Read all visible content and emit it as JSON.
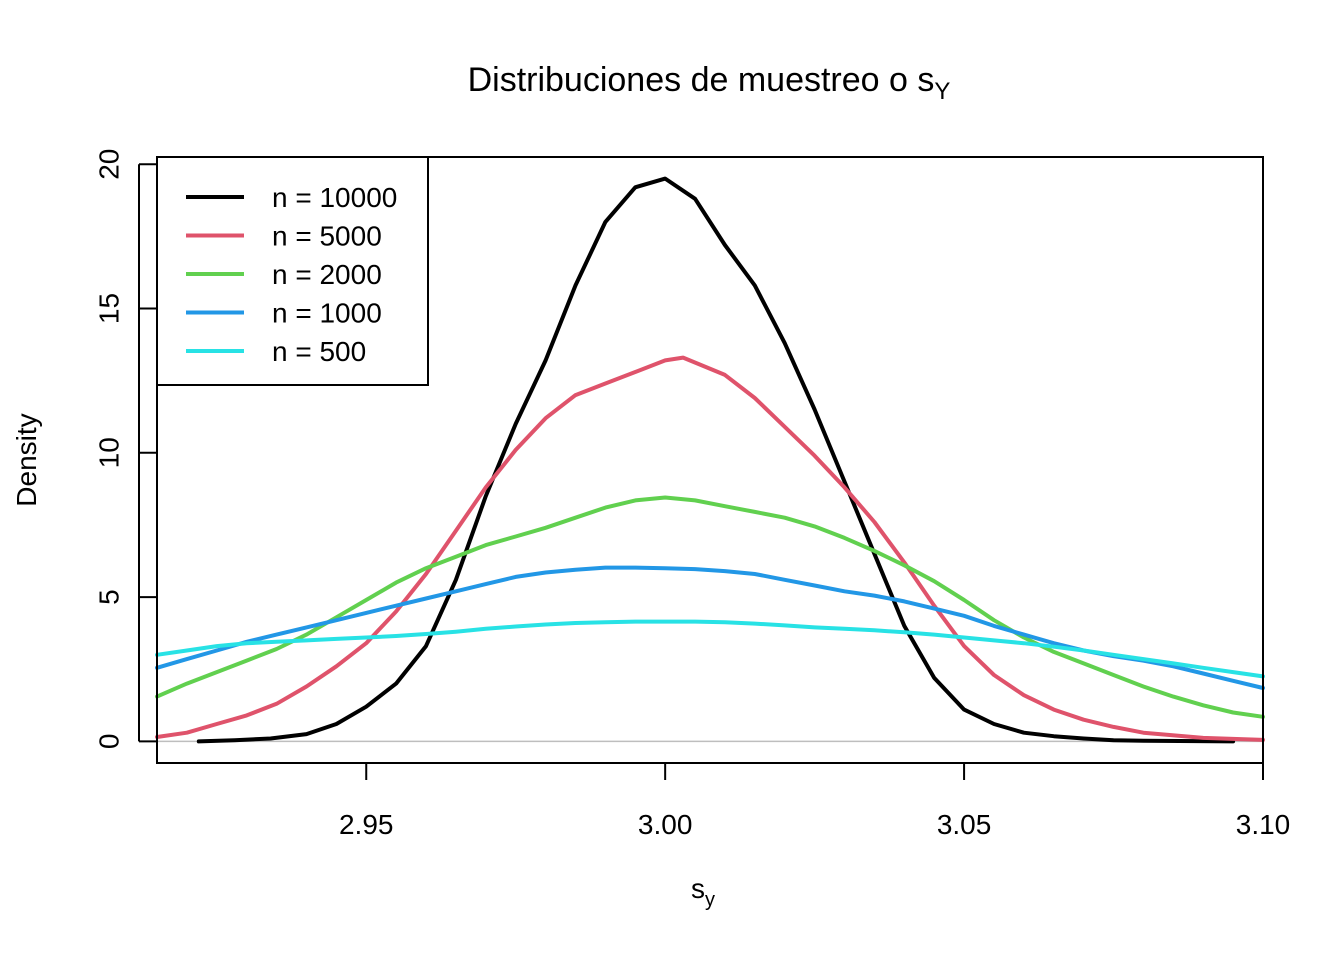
{
  "chart_data": {
    "type": "line",
    "title": "Distribuciones de muestreo o s",
    "title_subscript": "Y",
    "xlabel": "s",
    "xlabel_subscript": "y",
    "ylabel": "Density",
    "xlim": [
      2.915,
      3.1
    ],
    "ylim": [
      -0.75,
      20.25
    ],
    "x_ticks": [
      {
        "value": 2.95,
        "label": "2.95"
      },
      {
        "value": 3.0,
        "label": "3.00"
      },
      {
        "value": 3.05,
        "label": "3.05"
      },
      {
        "value": 3.1,
        "label": "3.10"
      }
    ],
    "y_ticks": [
      {
        "value": 0,
        "label": "0"
      },
      {
        "value": 5,
        "label": "5"
      },
      {
        "value": 10,
        "label": "10"
      },
      {
        "value": 15,
        "label": "15"
      },
      {
        "value": 20,
        "label": "20"
      }
    ],
    "grid": false,
    "zero_line": true,
    "zero_line_color": "#bebebe",
    "legend": {
      "position": "top-left"
    },
    "series": [
      {
        "name": "n = 10000",
        "color": "#000000",
        "points": [
          [
            2.922,
            0.0
          ],
          [
            2.928,
            0.04
          ],
          [
            2.934,
            0.1
          ],
          [
            2.94,
            0.25
          ],
          [
            2.945,
            0.6
          ],
          [
            2.95,
            1.2
          ],
          [
            2.955,
            2.0
          ],
          [
            2.96,
            3.3
          ],
          [
            2.965,
            5.6
          ],
          [
            2.97,
            8.5
          ],
          [
            2.975,
            11.0
          ],
          [
            2.98,
            13.2
          ],
          [
            2.985,
            15.8
          ],
          [
            2.99,
            18.0
          ],
          [
            2.995,
            19.2
          ],
          [
            3.0,
            19.5
          ],
          [
            3.005,
            18.8
          ],
          [
            3.01,
            17.2
          ],
          [
            3.015,
            15.8
          ],
          [
            3.02,
            13.8
          ],
          [
            3.025,
            11.5
          ],
          [
            3.03,
            9.0
          ],
          [
            3.035,
            6.5
          ],
          [
            3.04,
            4.0
          ],
          [
            3.045,
            2.2
          ],
          [
            3.05,
            1.1
          ],
          [
            3.055,
            0.6
          ],
          [
            3.06,
            0.3
          ],
          [
            3.065,
            0.18
          ],
          [
            3.07,
            0.1
          ],
          [
            3.075,
            0.04
          ],
          [
            3.08,
            0.02
          ],
          [
            3.095,
            0.0
          ]
        ]
      },
      {
        "name": "n = 5000",
        "color": "#df536b",
        "points": [
          [
            2.915,
            0.15
          ],
          [
            2.92,
            0.3
          ],
          [
            2.925,
            0.6
          ],
          [
            2.93,
            0.9
          ],
          [
            2.935,
            1.3
          ],
          [
            2.94,
            1.9
          ],
          [
            2.945,
            2.6
          ],
          [
            2.95,
            3.4
          ],
          [
            2.955,
            4.5
          ],
          [
            2.96,
            5.8
          ],
          [
            2.965,
            7.3
          ],
          [
            2.97,
            8.8
          ],
          [
            2.975,
            10.1
          ],
          [
            2.98,
            11.2
          ],
          [
            2.985,
            12.0
          ],
          [
            2.99,
            12.4
          ],
          [
            2.995,
            12.8
          ],
          [
            3.0,
            13.2
          ],
          [
            3.003,
            13.3
          ],
          [
            3.01,
            12.7
          ],
          [
            3.015,
            11.9
          ],
          [
            3.02,
            10.9
          ],
          [
            3.025,
            9.9
          ],
          [
            3.03,
            8.8
          ],
          [
            3.035,
            7.6
          ],
          [
            3.04,
            6.2
          ],
          [
            3.045,
            4.7
          ],
          [
            3.05,
            3.3
          ],
          [
            3.055,
            2.3
          ],
          [
            3.06,
            1.6
          ],
          [
            3.065,
            1.1
          ],
          [
            3.07,
            0.75
          ],
          [
            3.075,
            0.5
          ],
          [
            3.08,
            0.3
          ],
          [
            3.09,
            0.12
          ],
          [
            3.1,
            0.05
          ]
        ]
      },
      {
        "name": "n = 2000",
        "color": "#61d04f",
        "points": [
          [
            2.915,
            1.55
          ],
          [
            2.92,
            2.0
          ],
          [
            2.925,
            2.4
          ],
          [
            2.93,
            2.8
          ],
          [
            2.935,
            3.2
          ],
          [
            2.94,
            3.7
          ],
          [
            2.945,
            4.3
          ],
          [
            2.95,
            4.9
          ],
          [
            2.955,
            5.5
          ],
          [
            2.96,
            6.0
          ],
          [
            2.965,
            6.4
          ],
          [
            2.97,
            6.8
          ],
          [
            2.975,
            7.1
          ],
          [
            2.98,
            7.4
          ],
          [
            2.985,
            7.75
          ],
          [
            2.99,
            8.1
          ],
          [
            2.995,
            8.35
          ],
          [
            3.0,
            8.45
          ],
          [
            3.005,
            8.35
          ],
          [
            3.01,
            8.15
          ],
          [
            3.015,
            7.95
          ],
          [
            3.02,
            7.75
          ],
          [
            3.025,
            7.45
          ],
          [
            3.03,
            7.05
          ],
          [
            3.035,
            6.6
          ],
          [
            3.04,
            6.1
          ],
          [
            3.045,
            5.55
          ],
          [
            3.05,
            4.9
          ],
          [
            3.055,
            4.2
          ],
          [
            3.06,
            3.6
          ],
          [
            3.065,
            3.1
          ],
          [
            3.07,
            2.7
          ],
          [
            3.075,
            2.3
          ],
          [
            3.08,
            1.9
          ],
          [
            3.085,
            1.55
          ],
          [
            3.09,
            1.25
          ],
          [
            3.095,
            1.0
          ],
          [
            3.1,
            0.85
          ]
        ]
      },
      {
        "name": "n = 1000",
        "color": "#2297e6",
        "points": [
          [
            2.915,
            2.55
          ],
          [
            2.92,
            2.85
          ],
          [
            2.925,
            3.15
          ],
          [
            2.93,
            3.45
          ],
          [
            2.935,
            3.7
          ],
          [
            2.94,
            3.95
          ],
          [
            2.945,
            4.2
          ],
          [
            2.95,
            4.45
          ],
          [
            2.955,
            4.7
          ],
          [
            2.96,
            4.95
          ],
          [
            2.965,
            5.2
          ],
          [
            2.97,
            5.45
          ],
          [
            2.975,
            5.7
          ],
          [
            2.98,
            5.85
          ],
          [
            2.985,
            5.95
          ],
          [
            2.99,
            6.02
          ],
          [
            2.995,
            6.02
          ],
          [
            3.0,
            6.0
          ],
          [
            3.005,
            5.97
          ],
          [
            3.01,
            5.9
          ],
          [
            3.015,
            5.8
          ],
          [
            3.02,
            5.6
          ],
          [
            3.025,
            5.4
          ],
          [
            3.03,
            5.2
          ],
          [
            3.035,
            5.05
          ],
          [
            3.04,
            4.85
          ],
          [
            3.045,
            4.6
          ],
          [
            3.05,
            4.35
          ],
          [
            3.055,
            4.0
          ],
          [
            3.06,
            3.7
          ],
          [
            3.065,
            3.4
          ],
          [
            3.07,
            3.15
          ],
          [
            3.075,
            2.95
          ],
          [
            3.08,
            2.8
          ],
          [
            3.085,
            2.6
          ],
          [
            3.09,
            2.35
          ],
          [
            3.095,
            2.1
          ],
          [
            3.1,
            1.85
          ]
        ]
      },
      {
        "name": "n = 500",
        "color": "#28e2e5",
        "points": [
          [
            2.915,
            3.0
          ],
          [
            2.92,
            3.15
          ],
          [
            2.925,
            3.3
          ],
          [
            2.93,
            3.4
          ],
          [
            2.935,
            3.45
          ],
          [
            2.94,
            3.5
          ],
          [
            2.945,
            3.55
          ],
          [
            2.95,
            3.6
          ],
          [
            2.955,
            3.65
          ],
          [
            2.96,
            3.72
          ],
          [
            2.965,
            3.8
          ],
          [
            2.97,
            3.9
          ],
          [
            2.975,
            3.98
          ],
          [
            2.98,
            4.05
          ],
          [
            2.985,
            4.1
          ],
          [
            2.99,
            4.13
          ],
          [
            2.995,
            4.15
          ],
          [
            3.0,
            4.15
          ],
          [
            3.005,
            4.15
          ],
          [
            3.01,
            4.13
          ],
          [
            3.015,
            4.08
          ],
          [
            3.02,
            4.02
          ],
          [
            3.025,
            3.95
          ],
          [
            3.03,
            3.9
          ],
          [
            3.035,
            3.85
          ],
          [
            3.04,
            3.78
          ],
          [
            3.045,
            3.7
          ],
          [
            3.05,
            3.6
          ],
          [
            3.055,
            3.5
          ],
          [
            3.06,
            3.4
          ],
          [
            3.065,
            3.28
          ],
          [
            3.07,
            3.15
          ],
          [
            3.075,
            3.0
          ],
          [
            3.08,
            2.85
          ],
          [
            3.085,
            2.7
          ],
          [
            3.09,
            2.55
          ],
          [
            3.095,
            2.4
          ],
          [
            3.1,
            2.25
          ]
        ]
      }
    ]
  }
}
